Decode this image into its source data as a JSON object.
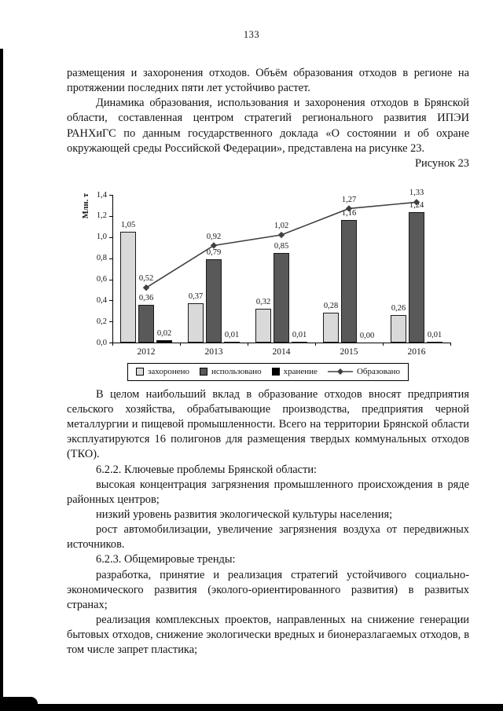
{
  "page": {
    "number": "133",
    "intro_paragraphs": [
      {
        "text": "размещения и захоронения отходов. Объём образования отходов в регионе на протяжении последних пяти лет устойчиво растет.",
        "indent": false
      },
      {
        "text": "Динамика образования, использования и захоронения отходов в Брянской области, составленная центром стратегий регионального развития ИПЭИ РАНХиГС по данным государственного доклада «О состоянии и об охране окружающей среды Российской Федерации», представлена на рисунке 23.",
        "indent": true
      }
    ],
    "figure_caption": "Рисунок 23",
    "after_paragraphs": [
      {
        "text": "В целом наибольший вклад в образование отходов вносят предприятия сельского хозяйства, обрабатывающие производства, предприятия черной металлургии и пищевой промышленности. Всего на территории Брянской области эксплуатируются 16 полигонов для размещения твердых коммунальных отходов (ТКО).",
        "indent": true
      },
      {
        "text": "6.2.2. Ключевые проблемы Брянской области:",
        "indent": true
      },
      {
        "text": "высокая концентрация загрязнения промышленного происхождения в ряде районных центров;",
        "indent": true
      },
      {
        "text": "низкий уровень развития экологической культуры населения;",
        "indent": true
      },
      {
        "text": "рост автомобилизации, увеличение загрязнения воздуха от передвижных источников.",
        "indent": true
      },
      {
        "text": "6.2.3. Общемировые тренды:",
        "indent": true
      },
      {
        "text": "разработка, принятие и реализация стратегий устойчивого социально-экономического развития (эколого-ориентированного развития) в развитых странах;",
        "indent": true
      },
      {
        "text": "реализация комплексных проектов, направленных на снижение генерации бытовых отходов, снижение экологически вредных и бионеразлагаемых отходов, в том числе запрет пластика;",
        "indent": true
      }
    ]
  },
  "chart_data": {
    "type": "bar",
    "categories": [
      "2012",
      "2013",
      "2014",
      "2015",
      "2016"
    ],
    "series": [
      {
        "name": "захоронено",
        "kind": "bar",
        "color": "#d9d9d9",
        "values": [
          1.05,
          0.37,
          0.32,
          0.28,
          0.26
        ]
      },
      {
        "name": "использовано",
        "kind": "bar",
        "color": "#595959",
        "values": [
          0.36,
          0.79,
          0.85,
          1.16,
          1.24
        ]
      },
      {
        "name": "хранение",
        "kind": "bar",
        "color": "#000000",
        "values": [
          0.02,
          0.01,
          0.01,
          0.0,
          0.01
        ]
      },
      {
        "name": "Образовано",
        "kind": "line",
        "color": "#404040",
        "values": [
          0.52,
          0.92,
          1.02,
          1.27,
          1.33
        ]
      }
    ],
    "title": "",
    "xlabel": "",
    "ylabel": "Млн. т",
    "ylim": [
      0,
      1.4
    ],
    "ytick_step": 0.2,
    "grid": false,
    "value_labels": true,
    "decimal_comma": true,
    "legend_position": "bottom"
  }
}
